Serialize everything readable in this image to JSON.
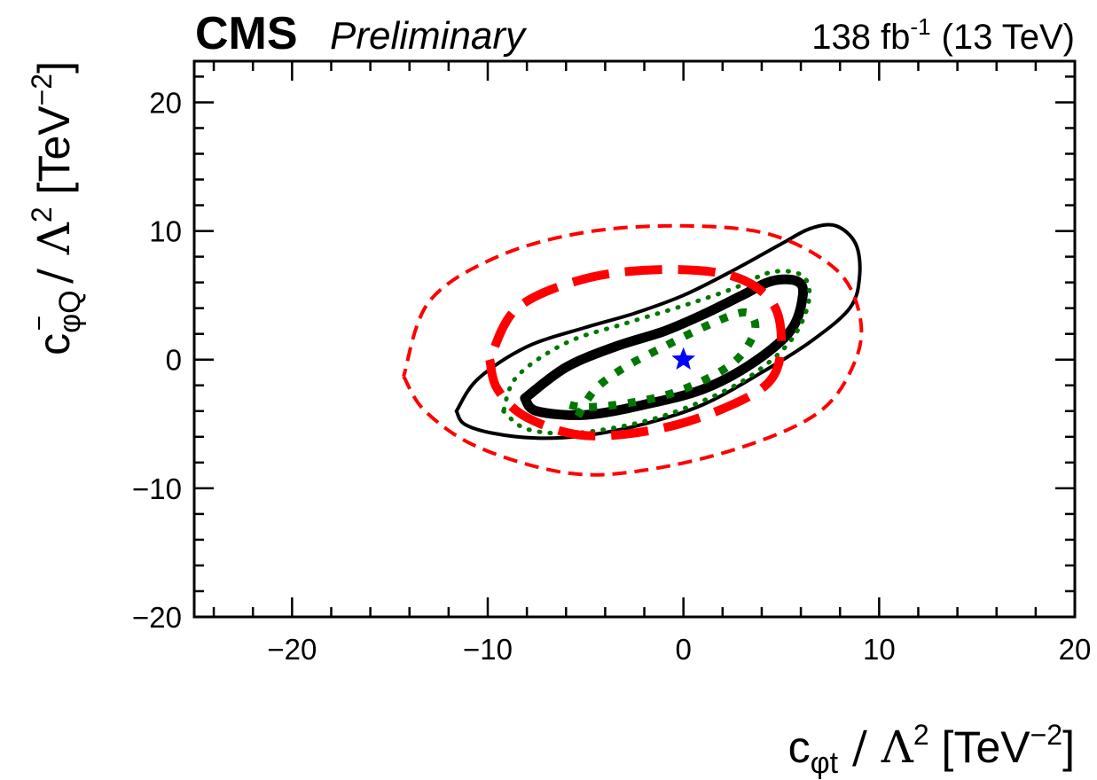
{
  "chart_data": {
    "type": "contour",
    "header": {
      "experiment": "CMS",
      "status": "Preliminary",
      "luminosity": "138 fb",
      "luminosity_exponent": "-1",
      "energy": "(13 TeV)"
    },
    "xlabel": {
      "coef": "c",
      "sub": "φt",
      "rest": " / Λ",
      "pow": "2",
      "unit": " [TeV",
      "unit_pow": "−2",
      "close": "]"
    },
    "ylabel": {
      "coef": "c",
      "sub": "φQ",
      "sup": "−",
      "rest": " / Λ",
      "pow": "2",
      "unit": " [TeV",
      "unit_pow": "−2",
      "close": "]"
    },
    "xlim": [
      -25,
      20
    ],
    "ylim": [
      -20,
      23.2
    ],
    "xticks": [
      -20,
      -10,
      0,
      10,
      20
    ],
    "xtick_labels": [
      "−20",
      "−10",
      "0",
      "10",
      "20"
    ],
    "yticks": [
      -20,
      -10,
      0,
      10,
      20
    ],
    "ytick_labels": [
      "−20",
      "−10",
      "0",
      "10",
      "20"
    ],
    "best_fit": {
      "x": 0.0,
      "y": 0.0,
      "marker": "star",
      "color": "#0000ff"
    },
    "contours": [
      {
        "name": "black-solid-95",
        "color": "#000000",
        "style": "solid",
        "weight": "thin",
        "points": [
          [
            -11.6,
            -4.0
          ],
          [
            -11.2,
            -5.0
          ],
          [
            -9.8,
            -5.7
          ],
          [
            -7.5,
            -6.1
          ],
          [
            -5,
            -5.9
          ],
          [
            -2,
            -5.0
          ],
          [
            1,
            -3.5
          ],
          [
            4,
            -1.0
          ],
          [
            6.5,
            1.4
          ],
          [
            8.5,
            4.0
          ],
          [
            9.0,
            6.5
          ],
          [
            8.8,
            9.0
          ],
          [
            7.8,
            10.4
          ],
          [
            6.5,
            10.2
          ],
          [
            5,
            9.0
          ],
          [
            2.5,
            6.9
          ],
          [
            0,
            5.0
          ],
          [
            -2.5,
            3.6
          ],
          [
            -5,
            2.5
          ],
          [
            -8,
            1.0
          ],
          [
            -10.5,
            -1.5
          ],
          [
            -11.6,
            -4.0
          ]
        ]
      },
      {
        "name": "black-thick-68",
        "color": "#000000",
        "style": "solid",
        "weight": "thick",
        "points": [
          [
            -8.1,
            -3.0
          ],
          [
            -7.5,
            -4.0
          ],
          [
            -5,
            -4.3
          ],
          [
            -2,
            -3.5
          ],
          [
            1,
            -2.3
          ],
          [
            3.5,
            -0.3
          ],
          [
            5.5,
            2.3
          ],
          [
            6.1,
            5.0
          ],
          [
            5.8,
            6.1
          ],
          [
            4.5,
            6.1
          ],
          [
            3,
            5.0
          ],
          [
            1,
            3.5
          ],
          [
            -1,
            2.2
          ],
          [
            -3.5,
            1.0
          ],
          [
            -6,
            -0.6
          ],
          [
            -8.1,
            -3.0
          ]
        ]
      },
      {
        "name": "green-dotted-95",
        "color": "#007700",
        "style": "dotted",
        "weight": "thin",
        "points": [
          [
            -9.2,
            -4.0
          ],
          [
            -8.0,
            -5.4
          ],
          [
            -5.5,
            -5.7
          ],
          [
            -2,
            -4.8
          ],
          [
            1,
            -3.2
          ],
          [
            3.5,
            -1.2
          ],
          [
            5.5,
            1.5
          ],
          [
            6.4,
            4.5
          ],
          [
            6.1,
            6.5
          ],
          [
            4.5,
            6.8
          ],
          [
            2.5,
            5.5
          ],
          [
            0,
            4.2
          ],
          [
            -3,
            2.8
          ],
          [
            -6,
            1.3
          ],
          [
            -8.5,
            -1.3
          ],
          [
            -9.2,
            -4.0
          ]
        ]
      },
      {
        "name": "green-dotted-thick-68",
        "color": "#007700",
        "style": "dotted",
        "weight": "thick",
        "points": [
          [
            -5.4,
            -4.4
          ],
          [
            -4.5,
            -2.3
          ],
          [
            -3,
            -0.6
          ],
          [
            -1,
            1.0
          ],
          [
            1,
            2.5
          ],
          [
            2.8,
            3.6
          ],
          [
            3.5,
            3.4
          ],
          [
            3.6,
            2.0
          ],
          [
            2.5,
            -0.3
          ],
          [
            0,
            -2.3
          ],
          [
            -2.5,
            -3.3
          ],
          [
            -5.0,
            -3.7
          ],
          [
            -6.3,
            -3.3
          ]
        ]
      },
      {
        "name": "red-dashed-thin-95",
        "color": "#ff0000",
        "style": "dashed",
        "weight": "thin",
        "points": [
          [
            -14.3,
            -1.3
          ],
          [
            -13.2,
            -4.0
          ],
          [
            -10.5,
            -6.8
          ],
          [
            -6,
            -8.8
          ],
          [
            -2,
            -8.6
          ],
          [
            3,
            -6.8
          ],
          [
            7,
            -4.0
          ],
          [
            8.8,
            0
          ],
          [
            9.0,
            3.5
          ],
          [
            7.8,
            7.0
          ],
          [
            4.5,
            9.7
          ],
          [
            0,
            10.4
          ],
          [
            -5,
            9.9
          ],
          [
            -9.5,
            8.0
          ],
          [
            -13,
            4.5
          ],
          [
            -14.3,
            -1.3
          ]
        ]
      },
      {
        "name": "red-dashed-thick-68",
        "color": "#ff0000",
        "style": "dashed",
        "weight": "thick",
        "points": [
          [
            -9.9,
            0
          ],
          [
            -9.5,
            -2.3
          ],
          [
            -8,
            -4.5
          ],
          [
            -5,
            -5.9
          ],
          [
            -1,
            -5.3
          ],
          [
            2.5,
            -3.5
          ],
          [
            4.5,
            -1.5
          ],
          [
            5.0,
            1.5
          ],
          [
            4.5,
            4.5
          ],
          [
            2.5,
            6.5
          ],
          [
            -1,
            7.0
          ],
          [
            -5,
            6.3
          ],
          [
            -8.5,
            4.0
          ],
          [
            -9.9,
            0
          ]
        ]
      }
    ]
  }
}
